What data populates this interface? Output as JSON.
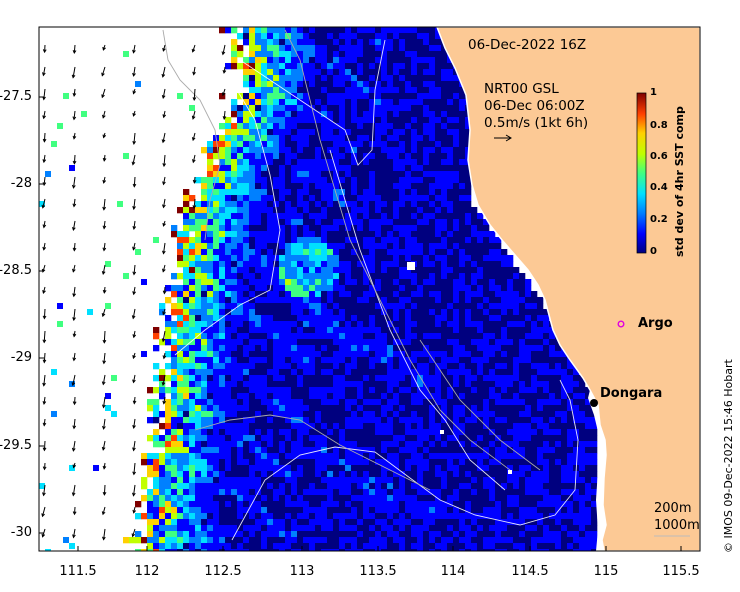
{
  "title": "06-Dec-2022 16Z",
  "current_product": {
    "source": "NRT00 GSL",
    "time": "06-Dec 06:00Z",
    "scale": "0.5m/s (1kt 6h)"
  },
  "colorbar": {
    "title": "std dev of 4hr SST comp",
    "ticks": [
      "1",
      "0.8",
      "0.6",
      "0.4",
      "0.2",
      "0"
    ],
    "colors": [
      "#00007f",
      "#0000ff",
      "#0080ff",
      "#00e0ff",
      "#40ff80",
      "#c0ff00",
      "#ffd000",
      "#ff4000",
      "#7f0000"
    ]
  },
  "axes": {
    "x_ticks": [
      "111.5",
      "112",
      "112.5",
      "113",
      "113.5",
      "114",
      "114.5",
      "115",
      "115.5"
    ],
    "y_ticks": [
      "-27.5",
      "-28",
      "-28.5",
      "-29",
      "-29.5",
      "-30"
    ],
    "xlim": [
      111.3,
      115.65
    ],
    "ylim": [
      -30.1,
      -27.1
    ]
  },
  "places": [
    {
      "name": "Argo",
      "marker": "open-circle",
      "color": "#e000e0",
      "lon": 115.02,
      "lat": -28.85
    },
    {
      "name": "Dongara",
      "marker": "filled-circle",
      "color": "#000000",
      "lon": 114.93,
      "lat": -29.25
    }
  ],
  "depth_contours": {
    "label_200": "200m",
    "label_1000": "1000m"
  },
  "colors": {
    "land": "#fcc995",
    "ocean_low": "#00007f",
    "coast": "#ffffff"
  },
  "credit": "© IMOS 09-Dec-2022 15:46 Hobart"
}
